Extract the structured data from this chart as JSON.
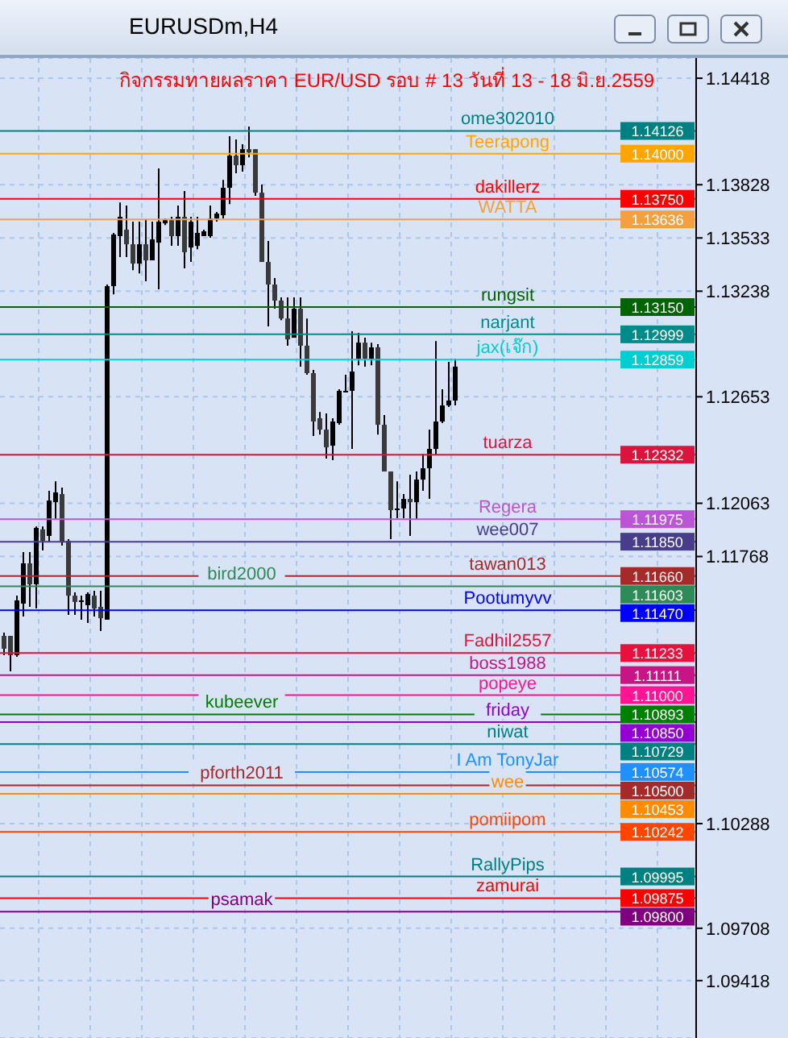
{
  "chart_data": {
    "type": "candlestick",
    "title": "EURUSDm,H4",
    "subtitle": "กิจกรรมทายผลราคา EUR/USD รอบ # 13 วันที่ 13 - 18 มิ.ย.2559",
    "categories": [
      null,
      null,
      null,
      null,
      null,
      null,
      null,
      null,
      null,
      null,
      null,
      null,
      null,
      null,
      null,
      null,
      null,
      null,
      null,
      null,
      null,
      null,
      null,
      null,
      null,
      null,
      null,
      null,
      null,
      null,
      null,
      null,
      null,
      null,
      null,
      null,
      null,
      null,
      null,
      null,
      null,
      null,
      null,
      null,
      null,
      null,
      null,
      null,
      null,
      null,
      null,
      null,
      null,
      null,
      null,
      null,
      null,
      null,
      null,
      null,
      null,
      null,
      null,
      null,
      null,
      null,
      null,
      null,
      null,
      null,
      null,
      null,
      null,
      null,
      null,
      null,
      null,
      null,
      null,
      null,
      null,
      null,
      null,
      null,
      null,
      null,
      null,
      null,
      null,
      null,
      null,
      null,
      null,
      null,
      null,
      null,
      null,
      null,
      null,
      null,
      null,
      null,
      null,
      null,
      null,
      null,
      null,
      null
    ],
    "ohlc": [
      [
        1.11328,
        1.11346,
        1.11221,
        1.11257
      ],
      [
        1.11328,
        1.11328,
        1.11132,
        1.11221
      ],
      [
        1.11221,
        1.11551,
        1.11212,
        1.11525
      ],
      [
        1.11507,
        1.11793,
        1.11435,
        1.1173
      ],
      [
        1.1173,
        1.11793,
        1.11489,
        1.11614
      ],
      [
        1.11614,
        1.11935,
        1.1148,
        1.11927
      ],
      [
        1.11918,
        1.11935,
        1.11802,
        1.11855
      ],
      [
        1.11882,
        1.12132,
        1.11846,
        1.12078
      ],
      [
        1.12069,
        1.12185,
        1.11971,
        1.12123
      ],
      [
        1.12114,
        1.1215,
        1.11828,
        1.11846
      ],
      [
        1.11855,
        1.11864,
        1.11444,
        1.11551
      ],
      [
        1.11551,
        1.11569,
        1.11444,
        1.11516
      ],
      [
        1.11516,
        1.11551,
        1.11418,
        1.11525
      ],
      [
        1.11498,
        1.11569,
        1.114,
        1.1156
      ],
      [
        1.11551,
        1.11578,
        1.11435,
        1.1148
      ],
      [
        1.11489,
        1.11578,
        1.11355,
        1.11426
      ],
      [
        1.11418,
        1.13275,
        1.11418,
        1.13266
      ],
      [
        1.13266,
        1.13561,
        1.13221,
        1.13552
      ],
      [
        1.13543,
        1.1373,
        1.13427,
        1.1365
      ],
      [
        1.13579,
        1.13713,
        1.13427,
        1.13498
      ],
      [
        1.13498,
        1.13623,
        1.13355,
        1.13391
      ],
      [
        1.13391,
        1.13623,
        1.13337,
        1.13498
      ],
      [
        1.13498,
        1.13632,
        1.13293,
        1.13409
      ],
      [
        1.13409,
        1.13623,
        1.13409,
        1.13525
      ],
      [
        1.13507,
        1.13918,
        1.13248,
        1.13623
      ],
      [
        1.13614,
        1.13641,
        1.13605,
        1.13632
      ],
      [
        1.13632,
        1.1365,
        1.13489,
        1.13543
      ],
      [
        1.13543,
        1.13713,
        1.13489,
        1.1365
      ],
      [
        1.1365,
        1.13793,
        1.13364,
        1.13454
      ],
      [
        1.1348,
        1.1365,
        1.134,
        1.13623
      ],
      [
        1.13489,
        1.1365,
        1.13471,
        1.13561
      ],
      [
        1.13543,
        1.13579,
        1.13543,
        1.1357
      ],
      [
        1.13543,
        1.13713,
        1.13534,
        1.13641
      ],
      [
        1.13641,
        1.13677,
        1.13623,
        1.13668
      ],
      [
        1.13659,
        1.13855,
        1.13641,
        1.13811
      ],
      [
        1.13811,
        1.14097,
        1.13721,
        1.13989
      ],
      [
        1.13989,
        1.14079,
        1.13891,
        1.13936
      ],
      [
        1.13936,
        1.14052,
        1.139,
        1.14025
      ],
      [
        1.14025,
        1.1415,
        1.1398,
        1.14007
      ],
      [
        1.14025,
        1.14025,
        1.13766,
        1.13784
      ],
      [
        1.13784,
        1.13829,
        1.134,
        1.134
      ],
      [
        1.134,
        1.13516,
        1.13043,
        1.13275
      ],
      [
        1.13275,
        1.13311,
        1.13141,
        1.13186
      ],
      [
        1.13186,
        1.13204,
        1.13078,
        1.13087
      ],
      [
        1.13087,
        1.13204,
        1.12936,
        1.12971
      ],
      [
        1.1298,
        1.13204,
        1.1298,
        1.13141
      ],
      [
        1.13141,
        1.13204,
        1.1282,
        1.12936
      ],
      [
        1.12936,
        1.13087,
        1.12775,
        1.12784
      ],
      [
        1.12784,
        1.12802,
        1.12436,
        1.12516
      ],
      [
        1.12534,
        1.12569,
        1.12444,
        1.12471
      ],
      [
        1.12471,
        1.12561,
        1.12311,
        1.12373
      ],
      [
        1.12382,
        1.12534,
        1.12302,
        1.12516
      ],
      [
        1.12507,
        1.12695,
        1.12498,
        1.12686
      ],
      [
        1.12677,
        1.12775,
        1.12677,
        1.12686
      ],
      [
        1.12686,
        1.13016,
        1.12364,
        1.12793
      ],
      [
        1.12864,
        1.13007,
        1.12828,
        1.12953
      ],
      [
        1.12953,
        1.1298,
        1.1282,
        1.12864
      ],
      [
        1.12864,
        1.12953,
        1.12828,
        1.12927
      ],
      [
        1.12927,
        1.12945,
        1.12444,
        1.12498
      ],
      [
        1.12498,
        1.12552,
        1.12239,
        1.12239
      ],
      [
        1.12239,
        1.12239,
        1.11864,
        1.12025
      ],
      [
        1.12025,
        1.12185,
        1.1198,
        1.12034
      ],
      [
        1.12034,
        1.12114,
        1.1198,
        1.12087
      ],
      [
        1.12087,
        1.12221,
        1.11882,
        1.12069
      ],
      [
        1.12069,
        1.12239,
        1.11971,
        1.12194
      ],
      [
        1.12194,
        1.12337,
        1.12132,
        1.12257
      ],
      [
        1.12257,
        1.12471,
        1.12087,
        1.12364
      ],
      [
        1.12364,
        1.12962,
        1.12328,
        1.12516
      ],
      [
        1.12516,
        1.12695,
        1.12507,
        1.12605
      ],
      [
        1.12605,
        1.12846,
        1.12596,
        1.12632
      ],
      [
        1.12632,
        1.12864,
        1.12605,
        1.1282
      ],
      null,
      null,
      null,
      null,
      null,
      null,
      null,
      null,
      null,
      null,
      null,
      null,
      null,
      null,
      null,
      null,
      null,
      null,
      null,
      null,
      null,
      null,
      null,
      null,
      null,
      null,
      null,
      null,
      null,
      null,
      null,
      null,
      null,
      null,
      null,
      null,
      null
    ],
    "ylim": [
      1.091,
      1.1453
    ],
    "yticks": [
      1.14418,
      1.13828,
      1.13533,
      1.13238,
      1.12653,
      1.12063,
      1.11768,
      1.10288,
      1.09708,
      1.09418
    ],
    "annotations": [
      {
        "text": "1.14126",
        "y": 1.14126
      },
      {
        "text": "1.14000",
        "y": 1.14
      },
      {
        "text": "1.13750",
        "y": 1.1375
      },
      {
        "text": "1.13636",
        "y": 1.13636
      },
      {
        "text": "1.13150",
        "y": 1.1315
      },
      {
        "text": "1.12999",
        "y": 1.12999
      },
      {
        "text": "1.12859",
        "y": 1.12859
      },
      {
        "text": "1.12332",
        "y": 1.12332
      },
      {
        "text": "1.11975",
        "y": 1.11975
      },
      {
        "text": "1.11850",
        "y": 1.1185
      },
      {
        "text": "1.11660",
        "y": 1.1166
      },
      {
        "text": "1.11603",
        "y": 1.11603
      },
      {
        "text": "1.11470",
        "y": 1.1147
      },
      {
        "text": "1.11233",
        "y": 1.11233
      },
      {
        "text": "1.11111",
        "y": 1.11111
      },
      {
        "text": "1.11000",
        "y": 1.11
      },
      {
        "text": "1.10893",
        "y": 1.10893
      },
      {
        "text": "1.10850",
        "y": 1.1085
      },
      {
        "text": "1.10729",
        "y": 1.10729
      },
      {
        "text": "1.10574",
        "y": 1.10574
      },
      {
        "text": "1.10500",
        "y": 1.105
      },
      {
        "text": "1.10453",
        "y": 1.10453
      },
      {
        "text": "1.10242",
        "y": 1.10242
      },
      {
        "text": "1.09995",
        "y": 1.09995
      },
      {
        "text": "1.09875",
        "y": 1.09875
      },
      {
        "text": "1.09800",
        "y": 1.098
      }
    ],
    "tick_labels": "y",
    "grid": true,
    "ref_lines": [
      {
        "axis": "y",
        "value": 1.14126,
        "label": "ome302010",
        "color": "#008080"
      },
      {
        "axis": "y",
        "value": 1.14,
        "label": "Teerapong",
        "color": "#ffa500"
      },
      {
        "axis": "y",
        "value": 1.1375,
        "label": "dakillerz",
        "color": "#ff0000"
      },
      {
        "axis": "y",
        "value": 1.13636,
        "label": "WATTA",
        "color": "#f4a040"
      },
      {
        "axis": "y",
        "value": 1.1315,
        "label": "rungsit",
        "color": "#006400"
      },
      {
        "axis": "y",
        "value": 1.12999,
        "label": "narjant",
        "color": "#008b8b"
      },
      {
        "axis": "y",
        "value": 1.12859,
        "label": "jax(เจ๊ก)",
        "color": "#00ced1"
      },
      {
        "axis": "y",
        "value": 1.12332,
        "label": "tuarza",
        "color": "#dc143c"
      },
      {
        "axis": "y",
        "value": 1.11975,
        "label": "Regera",
        "color": "#ba55d3"
      },
      {
        "axis": "y",
        "value": 1.1185,
        "label": "wee007",
        "color": "#483d8b"
      },
      {
        "axis": "y",
        "value": 1.1166,
        "label": "tawan013",
        "color": "#a52a2a"
      },
      {
        "axis": "y",
        "value": 1.11603,
        "label": "bird2000",
        "color": "#2e8b57"
      },
      {
        "axis": "y",
        "value": 1.1147,
        "label": "Pootumyvv",
        "color": "#0000ff"
      },
      {
        "axis": "y",
        "value": 1.11233,
        "label": "Fadhil2557",
        "color": "#e8103c"
      },
      {
        "axis": "y",
        "value": 1.11111,
        "label": "boss1988",
        "color": "#c71585"
      },
      {
        "axis": "y",
        "value": 1.11,
        "label": "popeye",
        "color": "#ff1493"
      },
      {
        "axis": "y",
        "value": 1.10893,
        "label": "kubeever",
        "color": "#008000"
      },
      {
        "axis": "y",
        "value": 1.1085,
        "label": "friday",
        "color": "#9400d3"
      },
      {
        "axis": "y",
        "value": 1.10729,
        "label": "niwat",
        "color": "#008080"
      },
      {
        "axis": "y",
        "value": 1.10574,
        "label": "I Am TonyJar",
        "color": "#1e90ff"
      },
      {
        "axis": "y",
        "value": 1.105,
        "label": "pforth2011",
        "color": "#a52a2a"
      },
      {
        "axis": "y",
        "value": 1.10453,
        "label": "wee",
        "color": "#ff8c00"
      },
      {
        "axis": "y",
        "value": 1.10242,
        "label": "pomiipom",
        "color": "#ff4500"
      },
      {
        "axis": "y",
        "value": 1.09995,
        "label": "RallyPips",
        "color": "#008080"
      },
      {
        "axis": "y",
        "value": 1.09875,
        "label": "zamurai",
        "color": "#ff0000"
      },
      {
        "axis": "y",
        "value": 1.098,
        "label": "psamak",
        "color": "#800080"
      }
    ]
  }
}
